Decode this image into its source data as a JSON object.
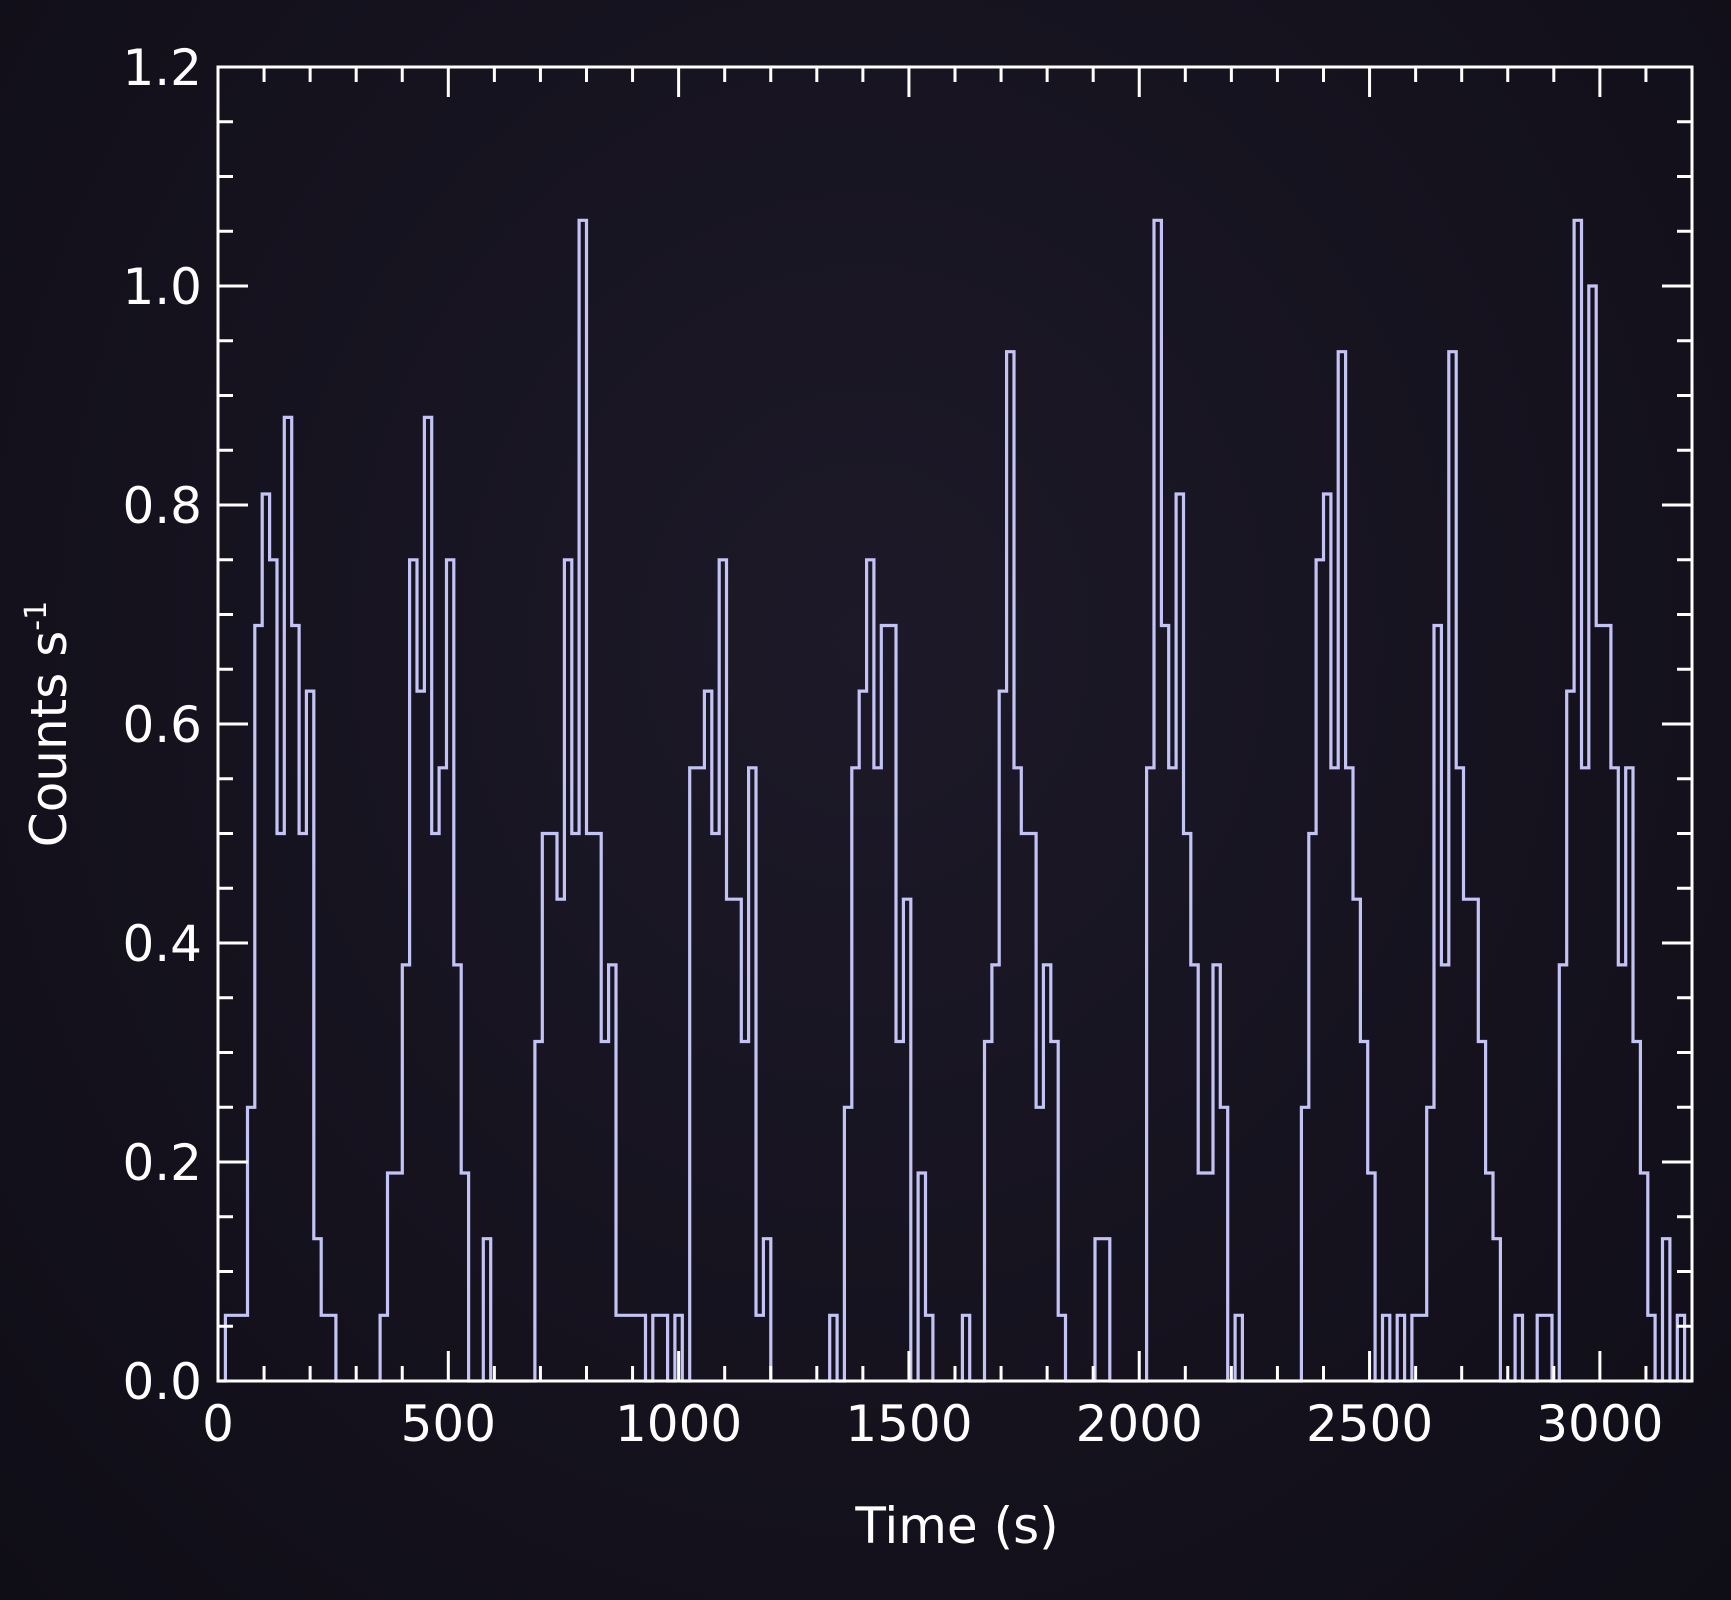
{
  "chart_data": {
    "type": "line",
    "style": "step",
    "xlabel": "Time (s)",
    "ylabel": "Counts s",
    "ylabel_superscript": "-1",
    "xlim": [
      0,
      3200
    ],
    "ylim": [
      0,
      1.2
    ],
    "x_ticks": [
      0,
      500,
      1000,
      1500,
      2000,
      2500,
      3000
    ],
    "x_tick_labels": [
      "0",
      "500",
      "1000",
      "1500",
      "2000",
      "2500",
      "3000"
    ],
    "y_ticks": [
      0.0,
      0.2,
      0.4,
      0.6,
      0.8,
      1.0,
      1.2
    ],
    "y_tick_labels": [
      "0.0",
      "0.2",
      "0.4",
      "0.6",
      "0.8",
      "1.0",
      "1.2"
    ],
    "grid": false,
    "colors": {
      "line": "#c3c3f5",
      "axes": "#ffffff",
      "background": "#15121e"
    },
    "series": [
      {
        "bin_width": 16,
        "x_start": 0,
        "values": [
          0.0,
          0.06,
          0.06,
          0.06,
          0.25,
          0.69,
          0.81,
          0.75,
          0.5,
          0.88,
          0.69,
          0.5,
          0.63,
          0.13,
          0.06,
          0.06,
          0.0,
          0.0,
          0.0,
          0.0,
          0.0,
          0.0,
          0.06,
          0.19,
          0.19,
          0.38,
          0.75,
          0.63,
          0.88,
          0.5,
          0.56,
          0.75,
          0.38,
          0.19,
          0.0,
          0.0,
          0.13,
          0.0,
          0.0,
          0.0,
          0.0,
          0.0,
          0.0,
          0.31,
          0.5,
          0.5,
          0.44,
          0.75,
          0.5,
          1.06,
          0.5,
          0.5,
          0.31,
          0.38,
          0.06,
          0.06,
          0.06,
          0.06,
          0.0,
          0.06,
          0.06,
          0.0,
          0.06,
          0.0,
          0.56,
          0.56,
          0.63,
          0.5,
          0.75,
          0.44,
          0.44,
          0.31,
          0.56,
          0.06,
          0.13,
          0.0,
          0.0,
          0.0,
          0.0,
          0.0,
          0.0,
          0.0,
          0.0,
          0.06,
          0.0,
          0.25,
          0.56,
          0.63,
          0.75,
          0.56,
          0.69,
          0.69,
          0.31,
          0.44,
          0.0,
          0.19,
          0.06,
          0.0,
          0.0,
          0.0,
          0.0,
          0.06,
          0.0,
          0.0,
          0.31,
          0.38,
          0.63,
          0.94,
          0.56,
          0.5,
          0.5,
          0.25,
          0.38,
          0.31,
          0.06,
          0.0,
          0.0,
          0.0,
          0.0,
          0.13,
          0.13,
          0.0,
          0.0,
          0.0,
          0.0,
          0.0,
          0.56,
          1.06,
          0.69,
          0.56,
          0.81,
          0.5,
          0.38,
          0.19,
          0.19,
          0.38,
          0.25,
          0.0,
          0.06,
          0.0,
          0.0,
          0.0,
          0.0,
          0.0,
          0.0,
          0.0,
          0.0,
          0.25,
          0.5,
          0.75,
          0.81,
          0.56,
          0.94,
          0.56,
          0.44,
          0.31,
          0.19,
          0.0,
          0.06,
          0.0,
          0.06,
          0.0,
          0.06,
          0.06,
          0.25,
          0.69,
          0.38,
          0.94,
          0.56,
          0.44,
          0.44,
          0.31,
          0.19,
          0.13,
          0.0,
          0.0,
          0.06,
          0.0,
          0.0,
          0.06,
          0.06,
          0.0,
          0.38,
          0.63,
          1.06,
          0.56,
          1.0,
          0.69,
          0.69,
          0.56,
          0.38,
          0.56,
          0.31,
          0.19,
          0.06,
          0.0,
          0.13,
          0.0,
          0.06,
          0.0
        ]
      }
    ]
  }
}
